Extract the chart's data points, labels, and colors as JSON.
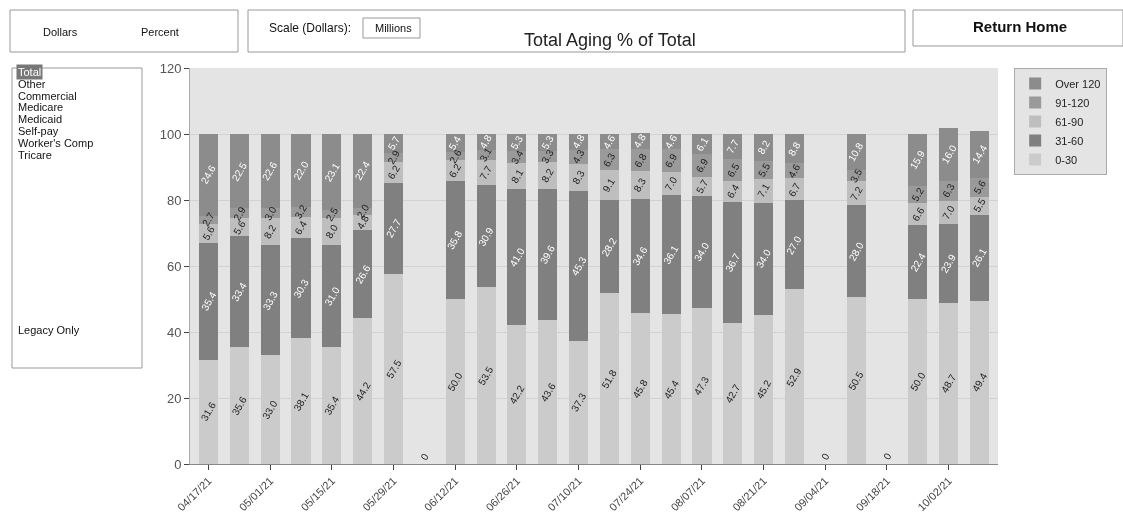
{
  "chart_data": {
    "type": "bar",
    "stacked": true,
    "title": "Total Aging % of Total",
    "categories": [
      "04/17/21",
      null,
      "05/01/21",
      null,
      "05/15/21",
      null,
      "05/29/21",
      null,
      "06/12/21",
      null,
      "06/26/21",
      null,
      "07/10/21",
      null,
      "07/24/21",
      null,
      "08/07/21",
      null,
      "08/21/21",
      null,
      "09/04/21",
      null,
      "09/18/21",
      null,
      "10/02/21",
      null
    ],
    "series": [
      {
        "name": "0-30",
        "color": "#cbcbcb",
        "values": [
          31.6,
          35.6,
          33.0,
          38.1,
          35.4,
          44.2,
          57.5,
          0,
          50.0,
          53.5,
          42.2,
          43.6,
          37.3,
          51.8,
          45.8,
          45.4,
          47.3,
          42.7,
          45.2,
          52.9,
          0,
          50.5,
          0,
          50.0,
          48.7,
          49.4
        ],
        "value_labels": [
          "31.6",
          "35.6",
          "33.0",
          "38.1",
          "35.4",
          "44.2",
          "57.5",
          "0",
          "50.0",
          "53.5",
          "42.2",
          "43.6",
          "37.3",
          "51.8",
          "45.8",
          "45.4",
          "47.3",
          "42.7",
          "45.2",
          "52.9",
          "0",
          "50.5",
          "0",
          "50.0",
          "48.7",
          "49.4"
        ]
      },
      {
        "name": "31-60",
        "color": "#808080",
        "values": [
          35.4,
          33.4,
          33.3,
          30.3,
          31.0,
          26.6,
          27.7,
          null,
          35.8,
          30.9,
          41.0,
          39.6,
          45.3,
          28.2,
          34.6,
          36.1,
          34.0,
          36.7,
          34.0,
          27.0,
          null,
          28.0,
          null,
          22.4,
          23.9,
          26.1
        ],
        "value_labels": [
          "35.4",
          "33.4",
          "33.3",
          "30.3",
          "31.0",
          "26.6",
          "27.7",
          null,
          "35.8",
          "30.9",
          "41.0",
          "39.6",
          "45.3",
          "28.2",
          "34.6",
          "36.1",
          "34.0",
          "36.7",
          "34.0",
          "27.0",
          null,
          "28.0",
          null,
          "22.4",
          "23.9",
          "26.1"
        ]
      },
      {
        "name": "61-90",
        "color": "#bebebe",
        "values": [
          5.6,
          5.6,
          8.2,
          6.4,
          8.0,
          4.8,
          6.2,
          null,
          6.2,
          7.7,
          8.1,
          8.2,
          8.3,
          9.1,
          8.3,
          7.0,
          5.7,
          6.4,
          7.1,
          6.7,
          null,
          7.2,
          null,
          6.6,
          7.0,
          5.5
        ],
        "value_labels": [
          "5.6",
          "5.6",
          "8.2",
          "6.4",
          "8.0",
          "4.8",
          "6.2",
          null,
          "6.2",
          "7.7",
          "8.1",
          "8.2",
          "8.3",
          "9.1",
          "8.3",
          "7.0",
          "5.7",
          "6.4",
          "7.1",
          "6.7",
          null,
          "7.2",
          null,
          "6.6",
          "7.0",
          "5.5"
        ]
      },
      {
        "name": "91-120",
        "color": "#9a9a9a",
        "values": [
          2.7,
          2.9,
          3.0,
          3.2,
          2.5,
          2.0,
          2.9,
          null,
          2.6,
          3.1,
          3.4,
          3.3,
          4.3,
          6.3,
          6.8,
          6.9,
          6.9,
          6.5,
          5.5,
          4.6,
          null,
          3.5,
          null,
          5.2,
          6.3,
          5.6
        ],
        "value_labels": [
          "2.7",
          "2.9",
          "3.0",
          "3.2",
          "2.5",
          "2.0",
          "2.9",
          null,
          "2.6",
          "3.1",
          "3.4",
          "3.3",
          "4.3",
          "6.3",
          "6.8",
          "6.9",
          "6.9",
          "6.5",
          "5.5",
          "4.6",
          null,
          "3.5",
          null,
          "5.2",
          "6.3",
          "5.6"
        ]
      },
      {
        "name": "Over 120",
        "color": "#8c8c8c",
        "values": [
          24.6,
          22.5,
          22.6,
          22.0,
          23.1,
          22.4,
          5.7,
          null,
          5.4,
          4.8,
          5.3,
          5.3,
          4.8,
          4.6,
          4.8,
          4.6,
          6.1,
          7.7,
          8.2,
          8.8,
          null,
          10.8,
          null,
          15.9,
          16.0,
          14.4
        ],
        "value_labels": [
          "24.6",
          "22.5",
          "22.6",
          "22.0",
          "23.1",
          "22.4",
          "5.7",
          null,
          "5.4",
          "4.8",
          "5.3",
          "5.3",
          "4.8",
          "4.6",
          "4.8",
          "4.6",
          "6.1",
          "7.7",
          "8.2",
          "8.8",
          null,
          "10.8",
          null,
          "15.9",
          "16.0",
          "14.4"
        ]
      }
    ],
    "ylim": [
      0,
      120
    ],
    "yticks": [
      0,
      20,
      40,
      60,
      80,
      100,
      120
    ],
    "grid": "y",
    "legend": "top right",
    "annotations": [
      "Dollars",
      "Percent",
      "Scale (Dollars):",
      "Millions",
      "Return Home",
      "Total",
      "Other",
      "Commercial",
      "Medicare",
      "Medicaid",
      "Self-pay",
      "Worker's Comp",
      "Tricare",
      "Legacy Only"
    ]
  }
}
